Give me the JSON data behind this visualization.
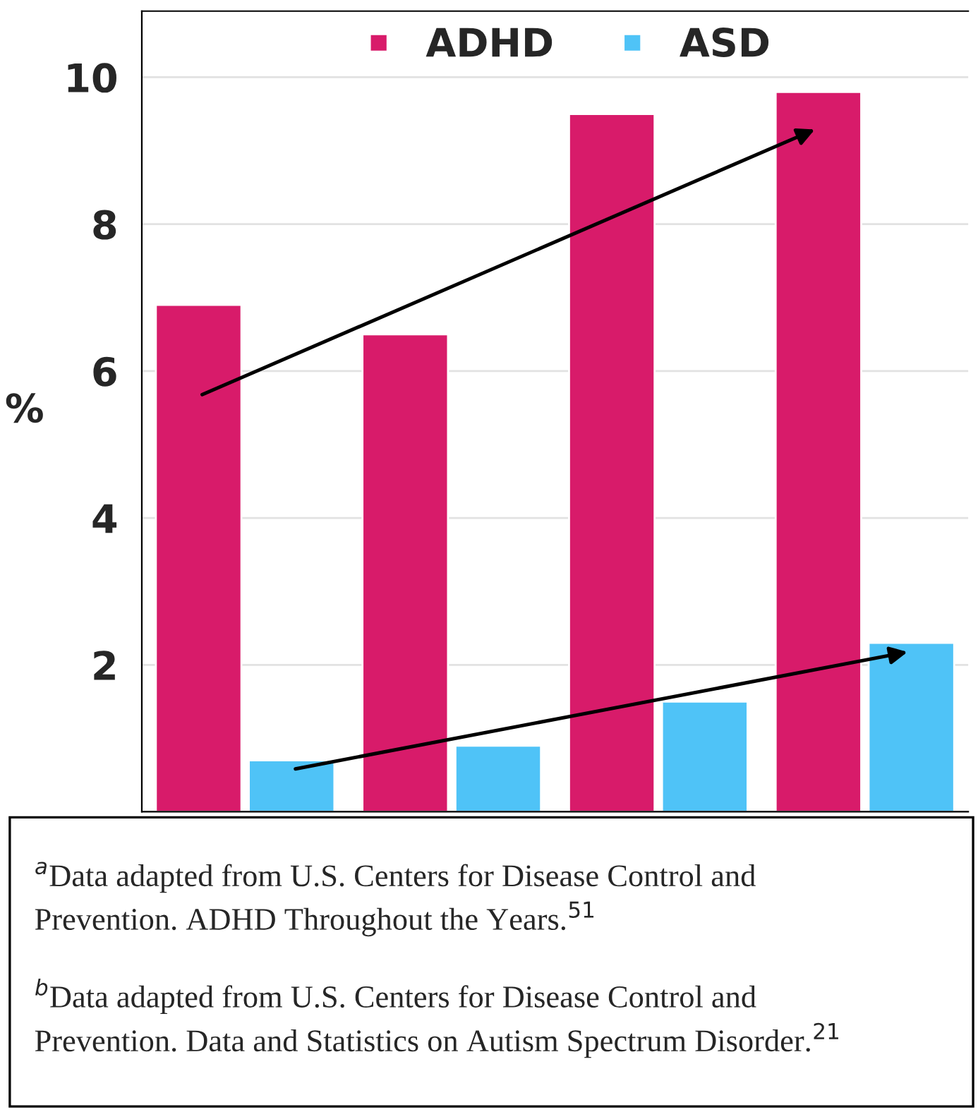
{
  "chart_data": {
    "type": "bar",
    "categories": [
      null,
      null,
      null,
      null
    ],
    "series": [
      {
        "name": "ADHD",
        "color": "#d81b6a",
        "values": [
          6.9,
          6.5,
          9.5,
          9.8
        ]
      },
      {
        "name": "ASD",
        "color": "#4fc3f7",
        "values": [
          0.7,
          0.9,
          1.5,
          2.3
        ]
      }
    ],
    "ylabel": "%",
    "ylim": [
      0,
      10.9
    ],
    "yticks": [
      2,
      4,
      6,
      8,
      10
    ],
    "grid": "y",
    "legend": "top",
    "annotations": [
      "$^{a}$Data adapted from U.S. Centers for Disease Control and Prevention. ADHD Throughout the Years.$^{51}$",
      "$^{b}$Data adapted from U.S. Centers for Disease Control and Prevention. Data and Statistics on Autism Spectrum Disorder.$^{21}$"
    ]
  }
}
